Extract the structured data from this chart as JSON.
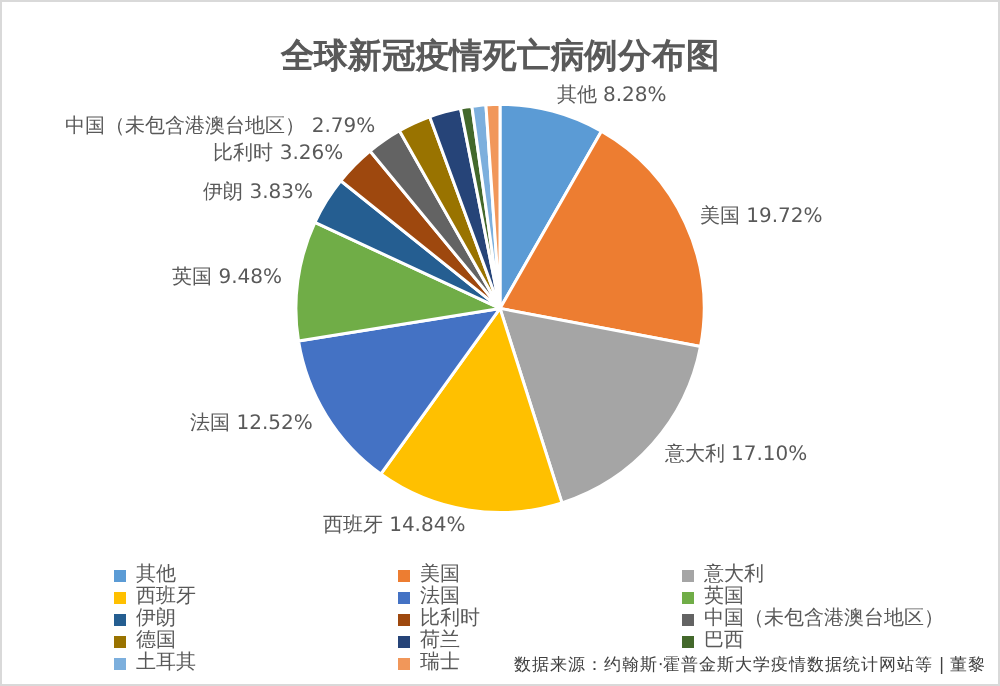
{
  "chart_data": {
    "type": "pie",
    "title": "全球新冠疫情死亡病例分布图",
    "categories": [
      "其他",
      "美国",
      "意大利",
      "西班牙",
      "法国",
      "英国",
      "伊朗",
      "比利时",
      "中国（未包含港澳台地区）",
      "德国",
      "荷兰",
      "巴西",
      "土耳其",
      "瑞士"
    ],
    "values": [
      8.28,
      19.72,
      17.1,
      14.84,
      12.52,
      9.48,
      3.83,
      3.26,
      2.79,
      2.6,
      2.5,
      0.9,
      1.1,
      1.1
    ],
    "value_labels": [
      "8.28%",
      "19.72%",
      "17.10%",
      "14.84%",
      "12.52%",
      "9.48%",
      "3.83%",
      "3.26%",
      "2.79%",
      null,
      null,
      null,
      null,
      null
    ],
    "colors": [
      "#5b9bd5",
      "#ed7d31",
      "#a5a5a5",
      "#ffc000",
      "#4472c4",
      "#70ad47",
      "#255e91",
      "#9e480e",
      "#636363",
      "#997300",
      "#264478",
      "#43682b",
      "#7cafdd",
      "#f1975a"
    ],
    "legend": "bottom",
    "annotations": [
      "数据来源：约翰斯·霍普金斯大学疫情数据统计网站等 | 董黎"
    ]
  }
}
